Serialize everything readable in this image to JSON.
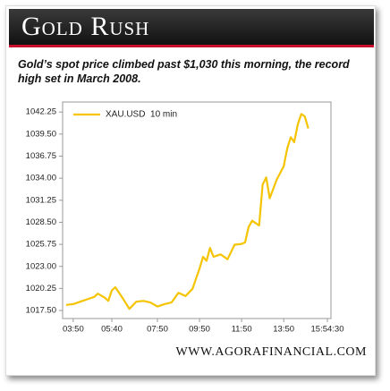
{
  "chart_data": {
    "type": "line",
    "title": "Gold Rush",
    "subtitle": "Gold’s spot price climbed past $1,030 this morning, the record high set in March 2008.",
    "source": "WWW.AGORAFINANCIAL.COM",
    "x": [
      "03:30",
      "03:50",
      "04:10",
      "04:30",
      "04:50",
      "05:00",
      "05:20",
      "05:30",
      "05:40",
      "05:50",
      "06:10",
      "06:30",
      "06:50",
      "07:10",
      "07:30",
      "07:50",
      "08:10",
      "08:30",
      "08:50",
      "09:10",
      "09:30",
      "09:50",
      "10:00",
      "10:10",
      "10:20",
      "10:30",
      "10:50",
      "11:10",
      "11:30",
      "11:50",
      "12:00",
      "12:10",
      "12:20",
      "12:40",
      "12:50",
      "13:00",
      "13:10",
      "13:30",
      "13:50",
      "14:00",
      "14:10",
      "14:20",
      "14:30",
      "14:40",
      "14:50",
      "15:00"
    ],
    "series": [
      {
        "name": "XAU.USD  10 min",
        "color": "#f5c400",
        "values": [
          1018.2,
          1018.3,
          1018.6,
          1018.9,
          1019.2,
          1019.6,
          1019.1,
          1018.7,
          1020.0,
          1020.4,
          1019.1,
          1017.7,
          1018.6,
          1018.7,
          1018.5,
          1018.0,
          1018.3,
          1018.5,
          1019.7,
          1019.3,
          1020.2,
          1022.7,
          1024.2,
          1023.7,
          1025.3,
          1024.2,
          1024.5,
          1023.9,
          1025.7,
          1025.8,
          1026.0,
          1027.9,
          1028.7,
          1028.1,
          1033.2,
          1034.1,
          1031.5,
          1033.8,
          1035.5,
          1037.7,
          1039.1,
          1038.5,
          1040.7,
          1042.0,
          1041.7,
          1040.2
        ]
      }
    ],
    "xlim": [
      "03:30",
      "15:54:30"
    ],
    "xticks": [
      "03:50",
      "05:40",
      "07:50",
      "09:50",
      "11:50",
      "13:50",
      "15:54:30"
    ],
    "ylim": [
      1016.5,
      1043.5
    ],
    "yticks": [
      {
        "value": 1017.5,
        "label": "1017.50"
      },
      {
        "value": 1020.25,
        "label": "1020.25"
      },
      {
        "value": 1023,
        "label": "1023.00"
      },
      {
        "value": 1025.75,
        "label": "1025.75"
      },
      {
        "value": 1028.5,
        "label": "1028.50"
      },
      {
        "value": 1031.25,
        "label": "1031.25"
      },
      {
        "value": 1034,
        "label": "1034.00"
      },
      {
        "value": 1036.75,
        "label": "1036.75"
      },
      {
        "value": 1039.5,
        "label": "1039.50"
      },
      {
        "value": 1042.25,
        "label": "1042.25"
      }
    ],
    "legend": "upper left"
  }
}
